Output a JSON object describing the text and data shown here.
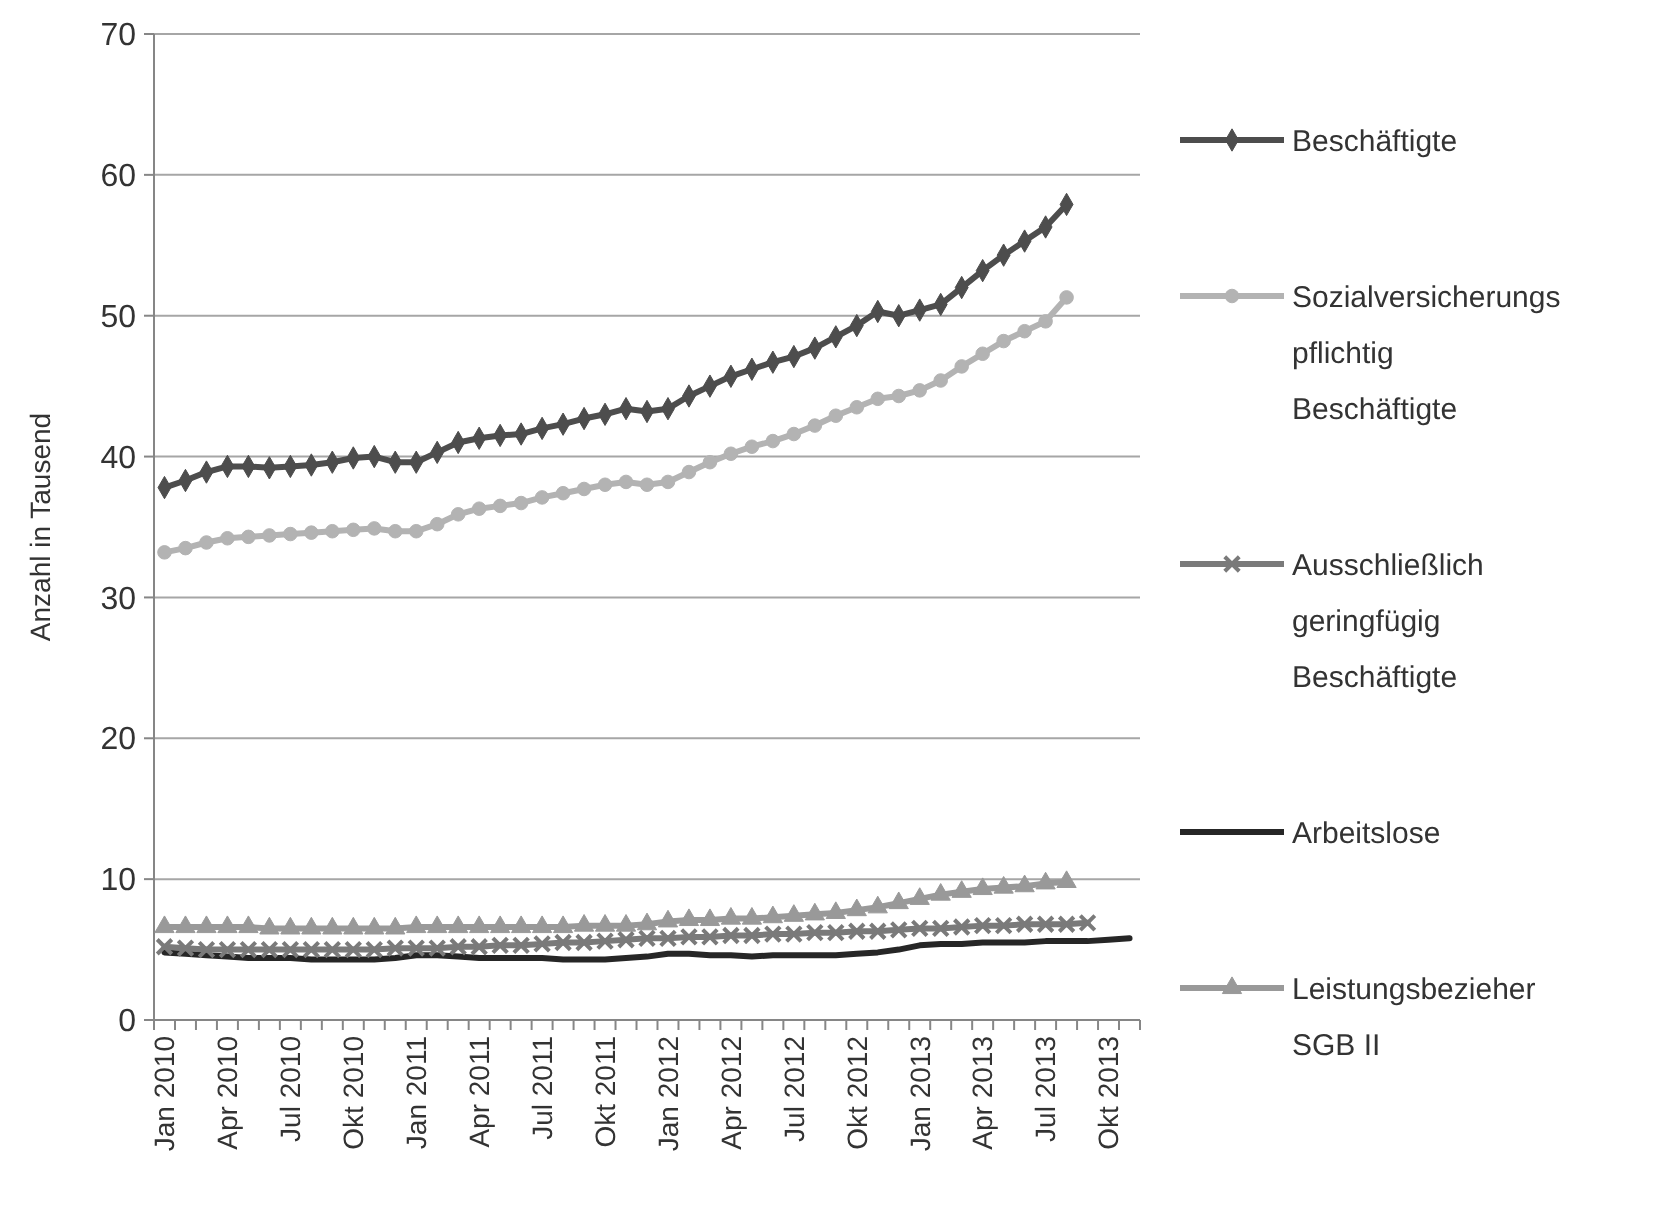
{
  "chart_data": {
    "type": "line",
    "ylabel": "Anzahl in Tausend",
    "categories": [
      "Jan 2010",
      null,
      null,
      "Apr 2010",
      null,
      null,
      "Jul 2010",
      null,
      null,
      "Okt 2010",
      null,
      null,
      "Jan 2011",
      null,
      null,
      "Apr 2011",
      null,
      null,
      "Jul 2011",
      null,
      null,
      "Okt 2011",
      null,
      null,
      "Jan 2012",
      null,
      null,
      "Apr 2012",
      null,
      null,
      "Jul 2012",
      null,
      null,
      "Okt 2012",
      null,
      null,
      "Jan 2013",
      null,
      null,
      "Apr 2013",
      null,
      null,
      "Jul 2013",
      null,
      null,
      "Okt 2013",
      null
    ],
    "ylim": [
      0,
      70
    ],
    "yticks": [
      0,
      10,
      20,
      30,
      40,
      50,
      60,
      70
    ],
    "grid": "y",
    "legend": "right",
    "series": [
      {
        "name": "Beschäftigte",
        "color": "#4d4d4d",
        "marker": "diamond",
        "values": [
          37.8,
          38.3,
          38.9,
          39.3,
          39.3,
          39.2,
          39.3,
          39.4,
          39.6,
          39.9,
          40.0,
          39.6,
          39.6,
          40.3,
          41.0,
          41.3,
          41.5,
          41.6,
          42.0,
          42.3,
          42.7,
          43.0,
          43.4,
          43.2,
          43.4,
          44.3,
          45.0,
          45.7,
          46.2,
          46.7,
          47.1,
          47.7,
          48.5,
          49.3,
          50.3,
          50.0,
          50.4,
          50.8,
          52.0,
          53.2,
          54.3,
          55.3,
          56.3,
          57.9,
          null,
          null,
          null
        ]
      },
      {
        "name": "Sozialversicherungs pflichtig Beschäftigte",
        "color": "#b3b3b3",
        "marker": "circle",
        "values": [
          33.2,
          33.5,
          33.9,
          34.2,
          34.3,
          34.4,
          34.5,
          34.6,
          34.7,
          34.8,
          34.9,
          34.7,
          34.7,
          35.2,
          35.9,
          36.3,
          36.5,
          36.7,
          37.1,
          37.4,
          37.7,
          38.0,
          38.2,
          38.0,
          38.2,
          38.9,
          39.6,
          40.2,
          40.7,
          41.1,
          41.6,
          42.2,
          42.9,
          43.5,
          44.1,
          44.3,
          44.7,
          45.4,
          46.4,
          47.3,
          48.2,
          48.9,
          49.6,
          51.3,
          null,
          null,
          null
        ]
      },
      {
        "name": "Ausschließlich geringfügig Beschäftigte",
        "color": "#7a7a7a",
        "marker": "cross",
        "values": [
          5.2,
          5.1,
          5.0,
          5.0,
          5.0,
          5.0,
          5.0,
          5.0,
          5.0,
          5.0,
          5.0,
          5.1,
          5.1,
          5.1,
          5.2,
          5.2,
          5.3,
          5.3,
          5.4,
          5.5,
          5.5,
          5.6,
          5.7,
          5.8,
          5.8,
          5.9,
          5.9,
          6.0,
          6.0,
          6.1,
          6.1,
          6.2,
          6.2,
          6.3,
          6.3,
          6.4,
          6.5,
          6.5,
          6.6,
          6.7,
          6.7,
          6.8,
          6.8,
          6.8,
          6.9,
          null,
          null
        ]
      },
      {
        "name": "Arbeitslose",
        "color": "#262626",
        "marker": "none",
        "values": [
          4.8,
          4.7,
          4.6,
          4.5,
          4.4,
          4.4,
          4.4,
          4.3,
          4.3,
          4.3,
          4.3,
          4.4,
          4.6,
          4.6,
          4.5,
          4.4,
          4.4,
          4.4,
          4.4,
          4.3,
          4.3,
          4.3,
          4.4,
          4.5,
          4.7,
          4.7,
          4.6,
          4.6,
          4.5,
          4.6,
          4.6,
          4.6,
          4.6,
          4.7,
          4.8,
          5.0,
          5.3,
          5.4,
          5.4,
          5.5,
          5.5,
          5.5,
          5.6,
          5.6,
          5.6,
          5.7,
          5.8
        ]
      },
      {
        "name": "Leistungsbezieher SGB II",
        "color": "#999999",
        "marker": "triangle",
        "values": [
          6.6,
          6.6,
          6.6,
          6.6,
          6.6,
          6.5,
          6.5,
          6.5,
          6.5,
          6.5,
          6.5,
          6.5,
          6.6,
          6.6,
          6.6,
          6.6,
          6.6,
          6.6,
          6.6,
          6.6,
          6.7,
          6.7,
          6.7,
          6.8,
          7.0,
          7.1,
          7.1,
          7.2,
          7.2,
          7.3,
          7.4,
          7.5,
          7.6,
          7.8,
          8.0,
          8.3,
          8.6,
          8.9,
          9.1,
          9.3,
          9.4,
          9.5,
          9.7,
          9.8,
          null,
          null,
          null
        ]
      }
    ]
  }
}
